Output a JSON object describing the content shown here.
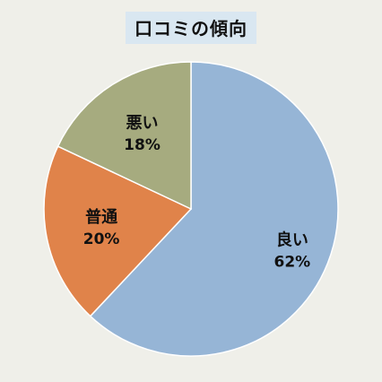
{
  "chart_data": {
    "type": "pie",
    "title": "口コミの傾向",
    "categories": [
      "良い",
      "普通",
      "悪い"
    ],
    "values": [
      62,
      20,
      18
    ],
    "value_labels": [
      "62%",
      "20%",
      "18%"
    ],
    "colors": [
      "#96b5d6",
      "#e0834a",
      "#a6ab7f"
    ],
    "start": "12 o'clock",
    "direction": "clockwise",
    "legend": "none",
    "labels_inside": true
  }
}
